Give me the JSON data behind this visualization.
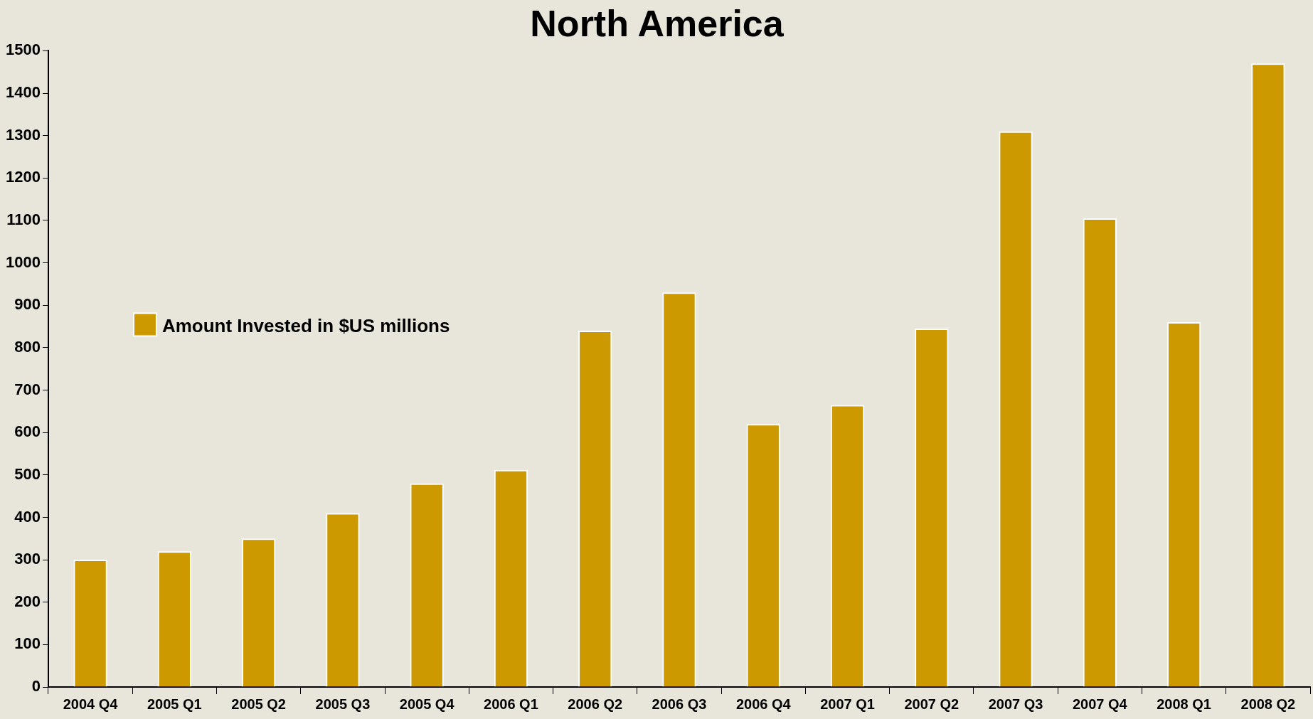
{
  "chart_data": {
    "type": "bar",
    "title": "North America",
    "categories": [
      "2004 Q4",
      "2005 Q1",
      "2005 Q2",
      "2005 Q3",
      "2005 Q4",
      "2006 Q1",
      "2006 Q2",
      "2006 Q3",
      "2006 Q4",
      "2007 Q1",
      "2007 Q2",
      "2007 Q3",
      "2007 Q4",
      "2008 Q1",
      "2008 Q2"
    ],
    "series": [
      {
        "name": "Amount Invested in $US millions",
        "color": "#cc9900",
        "values": [
          300,
          320,
          350,
          410,
          480,
          512,
          840,
          930,
          620,
          665,
          845,
          1310,
          1105,
          860,
          1470
        ]
      }
    ],
    "ylim": [
      0,
      1500
    ],
    "yticks": [
      0,
      100,
      200,
      300,
      400,
      500,
      600,
      700,
      800,
      900,
      1000,
      1100,
      1200,
      1300,
      1400,
      1500
    ],
    "grid": false,
    "legend": "top left"
  }
}
